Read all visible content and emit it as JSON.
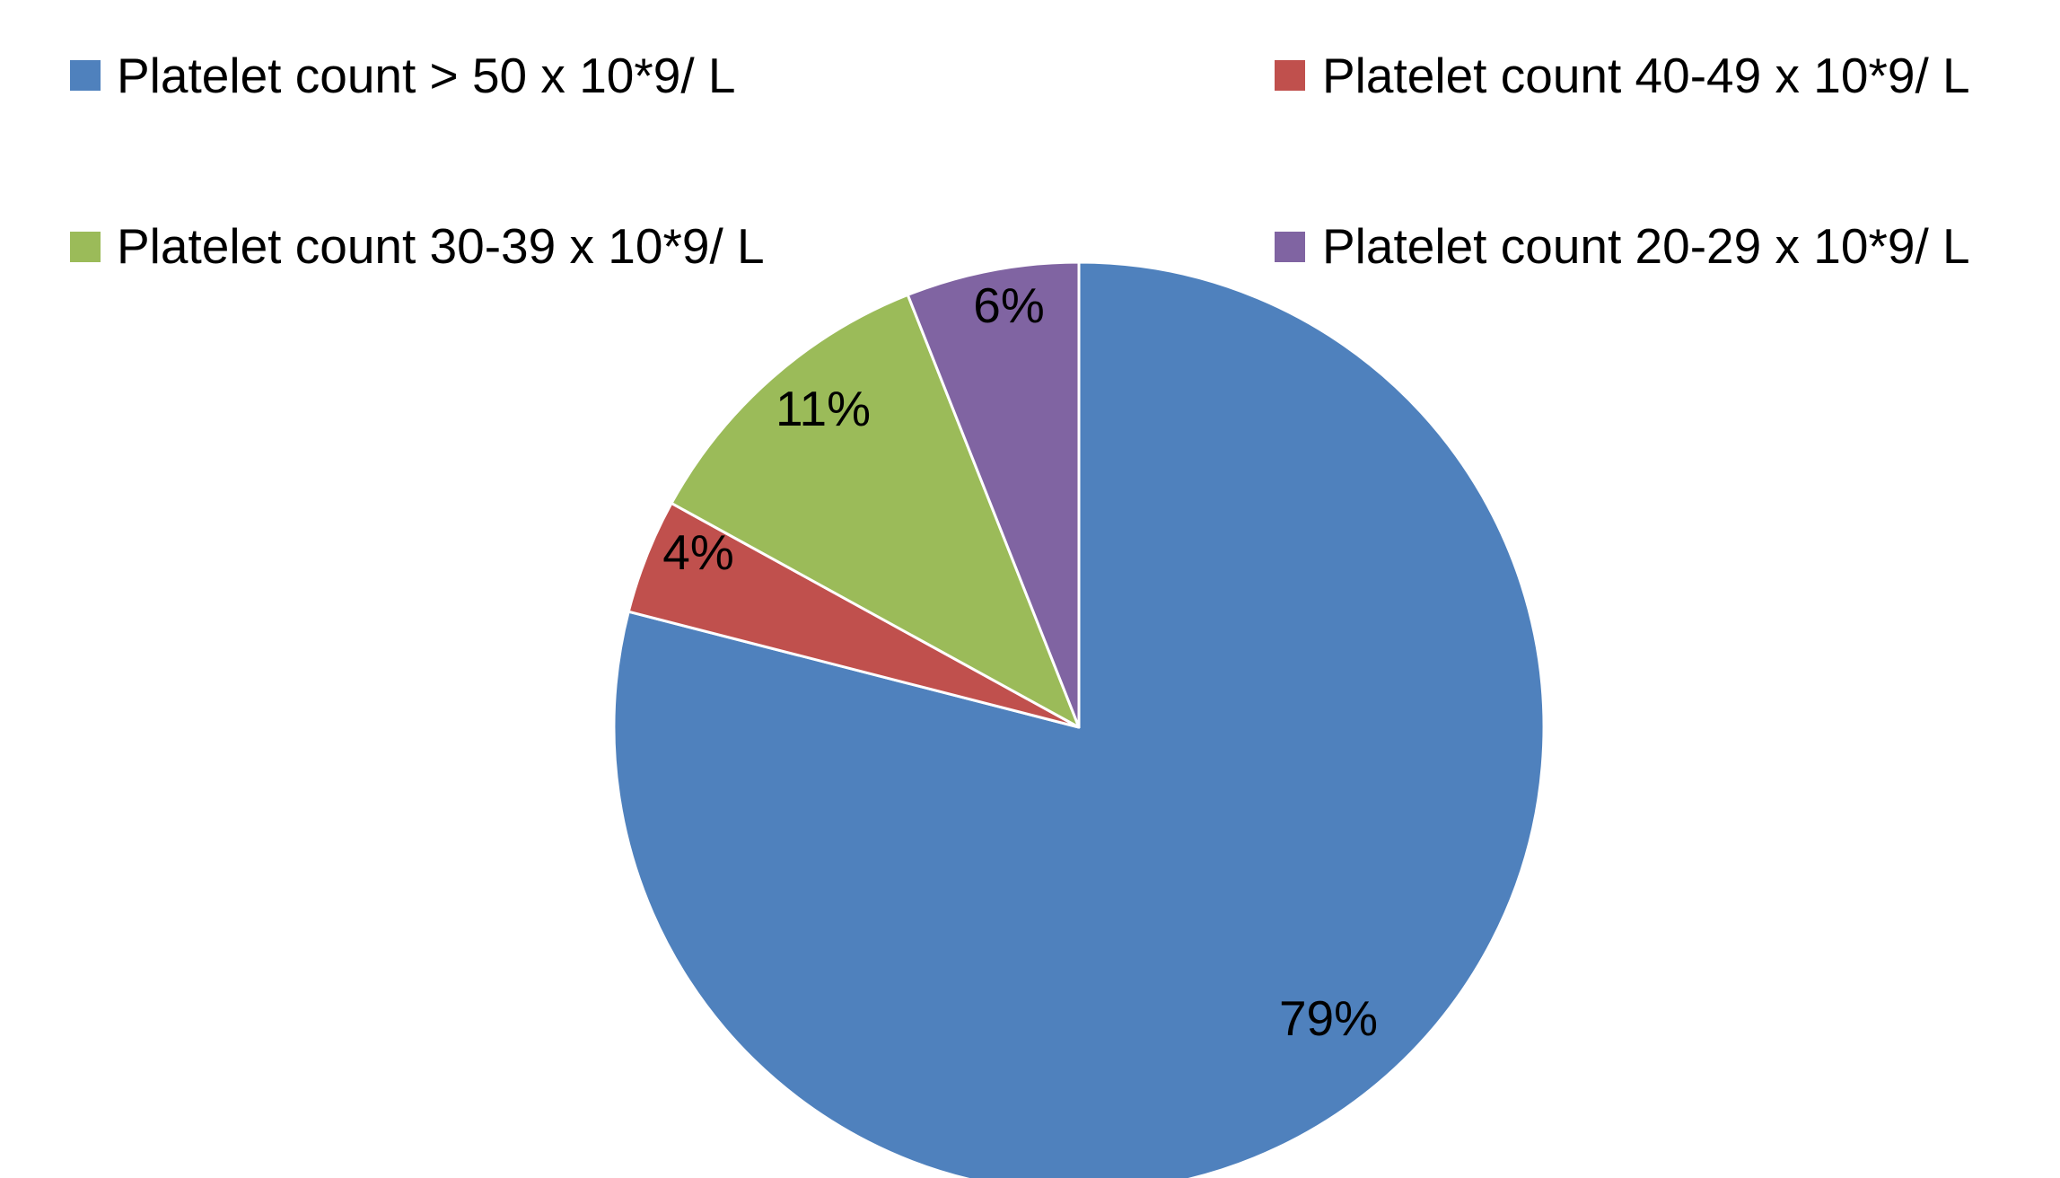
{
  "chart_data": {
    "type": "pie",
    "title": "",
    "legend_position": "top",
    "slices": [
      {
        "label": "Platelet count > 50 x 10*9/ L",
        "value": 79,
        "display": "79%",
        "color": "#4F81BD"
      },
      {
        "label": "Platelet count 40-49 x 10*9/ L",
        "value": 4,
        "display": "4%",
        "color": "#C0504D"
      },
      {
        "label": "Platelet count 30-39 x 10*9/ L",
        "value": 11,
        "display": "11%",
        "color": "#9BBB59"
      },
      {
        "label": "Platelet count 20-29 x 10*9/ L",
        "value": 6,
        "display": "6%",
        "color": "#8064A2"
      }
    ]
  }
}
